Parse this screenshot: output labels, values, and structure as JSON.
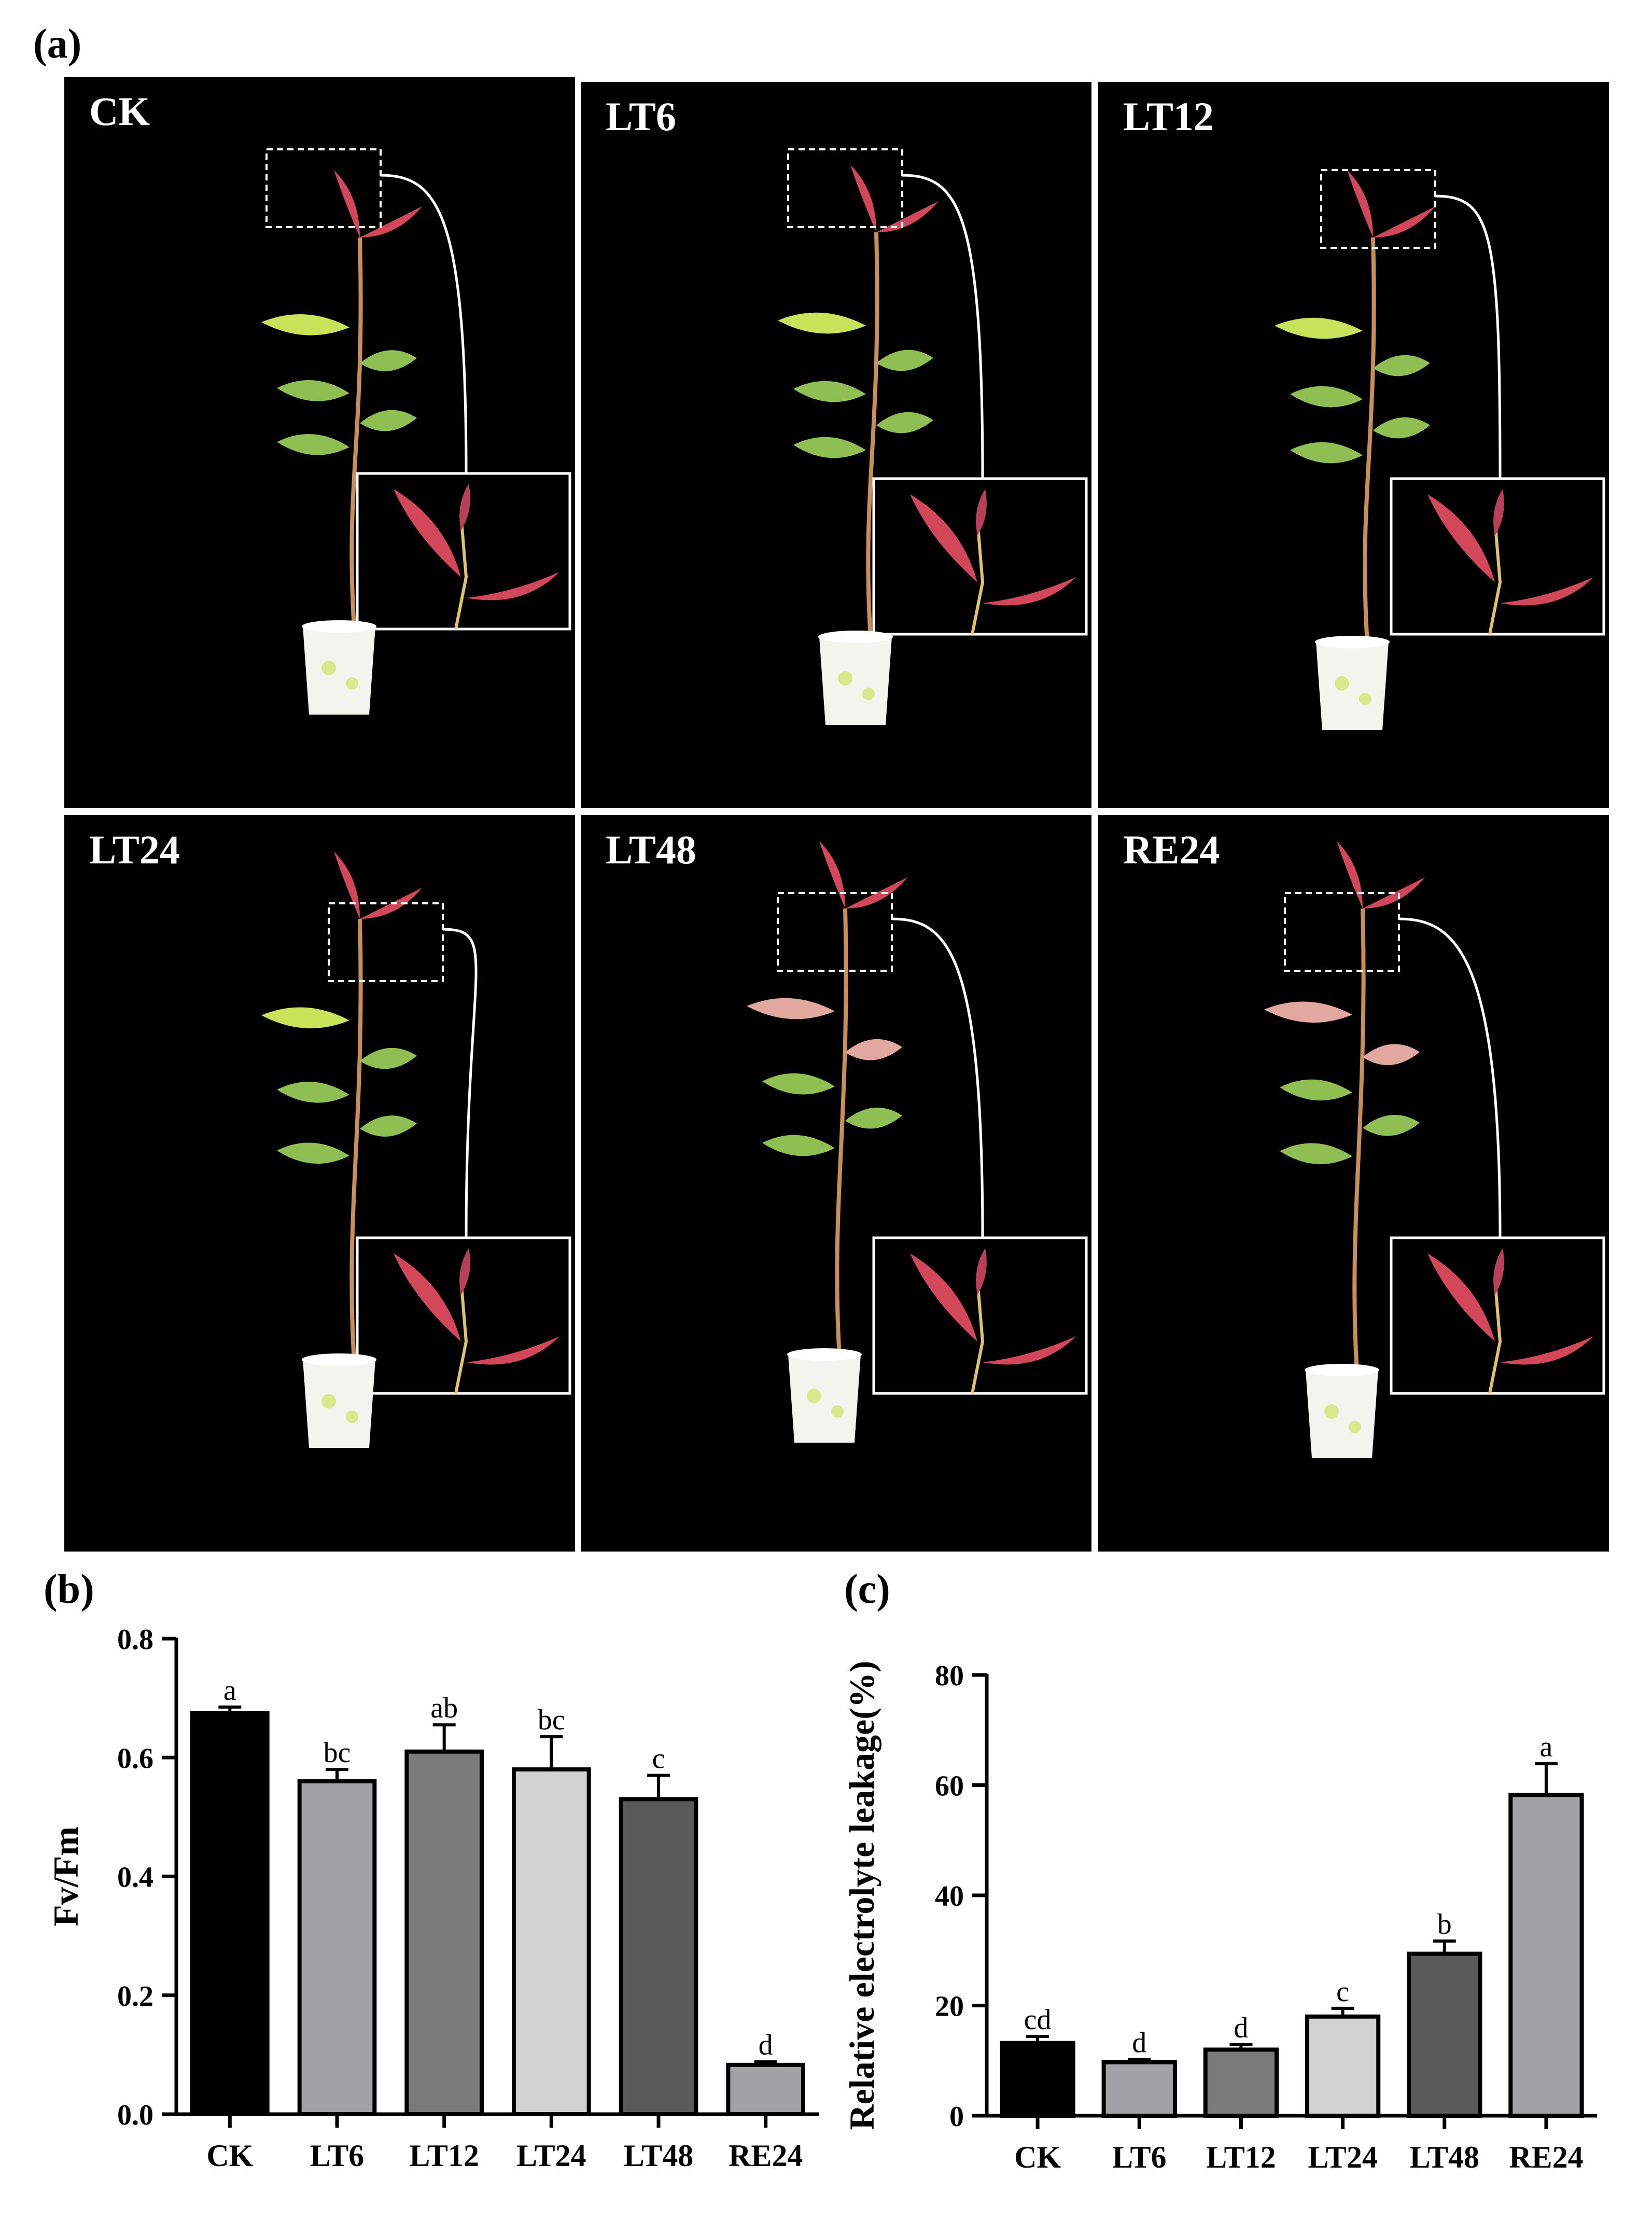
{
  "panel_a": {
    "letter": "(a)",
    "photos": [
      {
        "label": "CK"
      },
      {
        "label": "LT6"
      },
      {
        "label": "LT12"
      },
      {
        "label": "LT24"
      },
      {
        "label": "LT48"
      },
      {
        "label": "RE24"
      }
    ]
  },
  "chart_data": [
    {
      "panel": "(b)",
      "type": "bar",
      "categories": [
        "CK",
        "LT6",
        "LT12",
        "LT24",
        "LT48",
        "RE24"
      ],
      "values": [
        0.675,
        0.56,
        0.61,
        0.58,
        0.53,
        0.083
      ],
      "errors": [
        0.01,
        0.02,
        0.045,
        0.055,
        0.04,
        0.005
      ],
      "significance": [
        "a",
        "bc",
        "ab",
        "bc",
        "c",
        "d"
      ],
      "bar_colors": [
        "#000000",
        "#a2a2a7",
        "#7a7a7a",
        "#d2d2d2",
        "#5a5a5a",
        "#a2a2a7"
      ],
      "ylabel": "Fv/Fm",
      "xlabel": "",
      "ylim": [
        0,
        0.8
      ],
      "yticks": [
        "0.0",
        "0.2",
        "0.4",
        "0.6",
        "0.8"
      ]
    },
    {
      "panel": "(c)",
      "type": "bar",
      "categories": [
        "CK",
        "LT6",
        "LT12",
        "LT24",
        "LT48",
        "RE24"
      ],
      "values": [
        13.2,
        9.7,
        12.0,
        18.0,
        29.4,
        58.2
      ],
      "errors": [
        1.2,
        0.5,
        0.9,
        1.5,
        2.3,
        5.7
      ],
      "significance": [
        "cd",
        "d",
        "d",
        "c",
        "b",
        "a"
      ],
      "bar_colors": [
        "#000000",
        "#a2a2a7",
        "#7a7a7a",
        "#d2d2d2",
        "#5a5a5a",
        "#a2a2a7"
      ],
      "ylabel": "Relative electrolyte leakage(%)",
      "xlabel": "",
      "ylim": [
        0,
        80
      ],
      "yticks": [
        "0",
        "20",
        "40",
        "60",
        "80"
      ]
    }
  ]
}
